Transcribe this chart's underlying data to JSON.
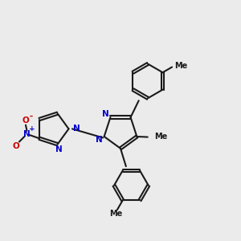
{
  "bg_color": "#ebebeb",
  "bond_color": "#1a1a1a",
  "n_color": "#0000cc",
  "o_color": "#cc0000",
  "lw": 1.5,
  "dbl_sep": 0.055,
  "xlim": [
    0,
    10
  ],
  "ylim": [
    0,
    10
  ]
}
